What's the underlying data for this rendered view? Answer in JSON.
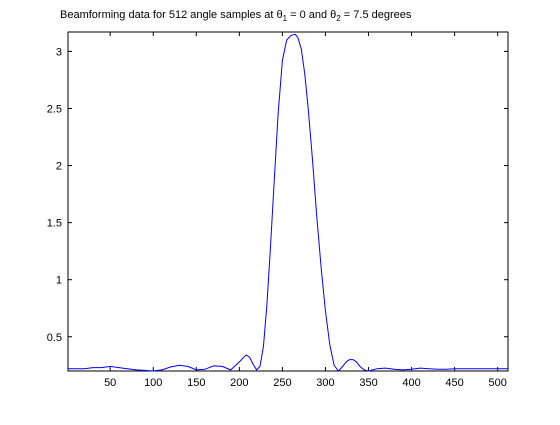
{
  "chart_data": {
    "type": "line",
    "title": {
      "prefix": "Beamforming data for 512 angle samples at ",
      "symbol": "θ",
      "sub1": "1",
      "mid": " = 0 and ",
      "sub2": "2",
      "suffix": " = 7.5 degrees"
    },
    "xlabel": "",
    "ylabel": "",
    "xlim": [
      1,
      512
    ],
    "ylim": [
      0.2,
      3.17
    ],
    "grid": false,
    "xticks": [
      50,
      100,
      150,
      200,
      250,
      300,
      350,
      400,
      450,
      500
    ],
    "xtick_labels": [
      "50",
      "100",
      "150",
      "200",
      "250",
      "300",
      "350",
      "400",
      "450",
      "500"
    ],
    "yticks": [
      0.5,
      1,
      1.5,
      2,
      2.5,
      3
    ],
    "ytick_labels": [
      "0.5",
      "1",
      "1.5",
      "2",
      "2.5",
      "3"
    ],
    "line_color": "#0000ff",
    "series": [
      {
        "x": [
          1,
          10,
          20,
          30,
          40,
          50,
          60,
          70,
          80,
          90,
          100,
          110,
          120,
          130,
          140,
          150,
          160,
          170,
          180,
          190,
          200,
          205,
          208,
          212,
          216,
          220,
          224,
          228,
          232,
          236,
          240,
          245,
          250,
          255,
          260,
          265,
          268,
          272,
          276,
          280,
          285,
          290,
          295,
          300,
          305,
          310,
          315,
          320,
          324,
          328,
          332,
          336,
          340,
          345,
          350,
          360,
          370,
          380,
          390,
          400,
          410,
          420,
          430,
          440,
          450,
          460,
          470,
          480,
          490,
          500,
          512
        ],
        "y": [
          0.22,
          0.22,
          0.22,
          0.23,
          0.23,
          0.24,
          0.23,
          0.22,
          0.21,
          0.205,
          0.2,
          0.21,
          0.235,
          0.25,
          0.24,
          0.21,
          0.215,
          0.245,
          0.24,
          0.21,
          0.28,
          0.32,
          0.34,
          0.32,
          0.26,
          0.21,
          0.24,
          0.42,
          0.78,
          1.26,
          1.8,
          2.45,
          2.92,
          3.1,
          3.14,
          3.15,
          3.12,
          3.02,
          2.8,
          2.5,
          2.05,
          1.55,
          1.1,
          0.72,
          0.43,
          0.25,
          0.2,
          0.24,
          0.28,
          0.3,
          0.3,
          0.28,
          0.24,
          0.21,
          0.2,
          0.22,
          0.225,
          0.215,
          0.21,
          0.215,
          0.225,
          0.22,
          0.215,
          0.215,
          0.22,
          0.22,
          0.22,
          0.22,
          0.22,
          0.22,
          0.22
        ]
      }
    ]
  }
}
